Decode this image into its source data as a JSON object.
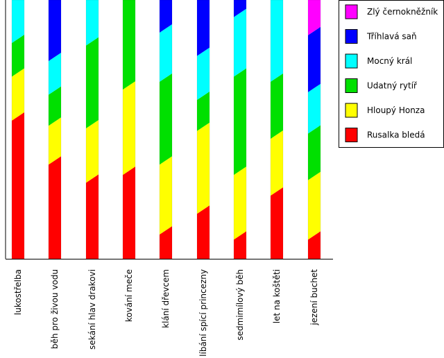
{
  "chart_data": {
    "type": "bar",
    "stacked": true,
    "categories": [
      "lukostřelba",
      "běh pro živou vodu",
      "sekání hlav drakovi",
      "kování meče",
      "klání dřevcem",
      "líbání spící princezny",
      "sedmimílový běh",
      "let na koštěti",
      "jezení buchet"
    ],
    "series": [
      {
        "name": "Rusalka bledá",
        "color": "#ff0000",
        "values": [
          0.55,
          0.38,
          0.31,
          0.34,
          0.11,
          0.19,
          0.09,
          0.26,
          0.09
        ]
      },
      {
        "name": "Hloupý Honza",
        "color": "#ffff00",
        "values": [
          0.17,
          0.15,
          0.21,
          0.33,
          0.27,
          0.32,
          0.25,
          0.22,
          0.23
        ]
      },
      {
        "name": "Udatný rytíř",
        "color": "#00e000",
        "values": [
          0.13,
          0.12,
          0.32,
          0.33,
          0.32,
          0.12,
          0.38,
          0.22,
          0.18
        ]
      },
      {
        "name": "Mocný král",
        "color": "#00ffff",
        "values": [
          0.15,
          0.13,
          0.16,
          0.0,
          0.19,
          0.17,
          0.23,
          0.3,
          0.16
        ]
      },
      {
        "name": "Tříhlavá saň",
        "color": "#0000ff",
        "values": [
          0.0,
          0.22,
          0.0,
          0.0,
          0.11,
          0.2,
          0.05,
          0.0,
          0.22
        ]
      },
      {
        "name": "Zlý černokněžník",
        "color": "#ff00ff",
        "values": [
          0.0,
          0.0,
          0.0,
          0.0,
          0.0,
          0.0,
          0.0,
          0.0,
          0.12
        ]
      }
    ],
    "ylim": [
      0,
      1
    ],
    "legend_position": "top-right",
    "grid": false
  }
}
